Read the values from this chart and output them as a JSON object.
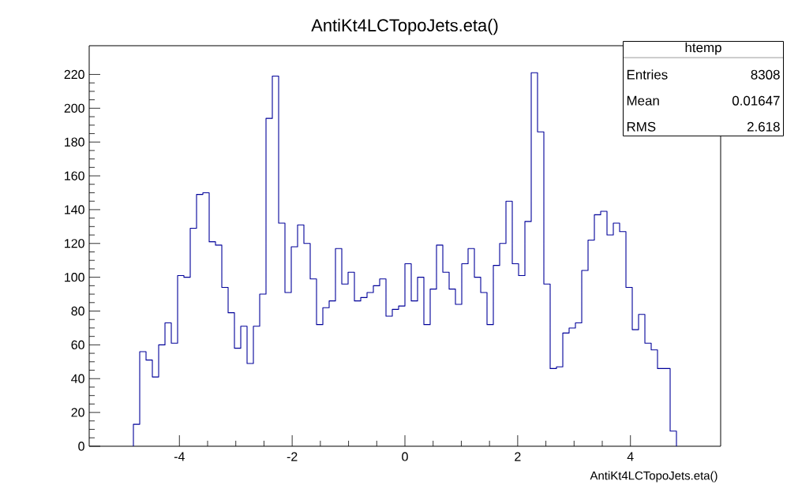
{
  "chart_data": {
    "type": "histogram",
    "title": "AntiKt4LCTopoJets.eta()",
    "xlabel": "AntiKt4LCTopoJets.eta()",
    "color": "#000099",
    "bins": [
      -4.816,
      -4.704,
      -4.592,
      -4.48,
      -4.368,
      -4.256,
      -4.144,
      -4.032,
      -3.92,
      -3.808,
      -3.696,
      -3.584,
      -3.472,
      -3.36,
      -3.248,
      -3.136,
      -3.024,
      -2.912,
      -2.8,
      -2.688,
      -2.576,
      -2.464,
      -2.352,
      -2.24,
      -2.128,
      -2.016,
      -1.904,
      -1.792,
      -1.68,
      -1.568,
      -1.456,
      -1.344,
      -1.232,
      -1.12,
      -1.008,
      -0.896,
      -0.784,
      -0.672,
      -0.56,
      -0.448,
      -0.336,
      -0.224,
      -0.112,
      0,
      0.112,
      0.224,
      0.336,
      0.448,
      0.56,
      0.672,
      0.784,
      0.896,
      1.008,
      1.12,
      1.232,
      1.344,
      1.456,
      1.568,
      1.68,
      1.792,
      1.904,
      2.016,
      2.128,
      2.24,
      2.352,
      2.464,
      2.576,
      2.688,
      2.8,
      2.912,
      3.024,
      3.136,
      3.248,
      3.36,
      3.472,
      3.584,
      3.696,
      3.808,
      3.92,
      4.032,
      4.144,
      4.256,
      4.368,
      4.48,
      4.592,
      4.704,
      4.816
    ],
    "values": [
      13,
      56,
      51,
      41,
      60,
      73,
      61,
      101,
      100,
      129,
      149,
      150,
      121,
      119,
      94,
      79,
      58,
      71,
      49,
      71,
      90,
      194,
      219,
      132,
      91,
      118,
      131,
      120,
      99,
      72,
      82,
      86,
      117,
      96,
      103,
      86,
      88,
      91,
      95,
      99,
      77,
      81,
      83,
      108,
      86,
      100,
      72,
      93,
      119,
      103,
      93,
      84,
      108,
      117,
      100,
      91,
      72,
      107,
      120,
      145,
      108,
      101,
      133,
      221,
      186,
      96,
      46,
      47,
      67,
      70,
      73,
      104,
      122,
      137,
      139,
      125,
      132,
      127,
      94,
      69,
      78,
      61,
      57,
      46,
      46,
      9
    ],
    "xlim": [
      -5.6,
      5.6
    ],
    "ylim": [
      0,
      237
    ],
    "xticks": [
      -4,
      -2,
      0,
      2,
      4
    ],
    "yticks": [
      0,
      20,
      40,
      60,
      80,
      100,
      120,
      140,
      160,
      180,
      200,
      220
    ],
    "annotations": [
      "htemp",
      "Entries",
      "8308",
      "Mean",
      "0.01647",
      "RMS",
      "2.618"
    ]
  }
}
